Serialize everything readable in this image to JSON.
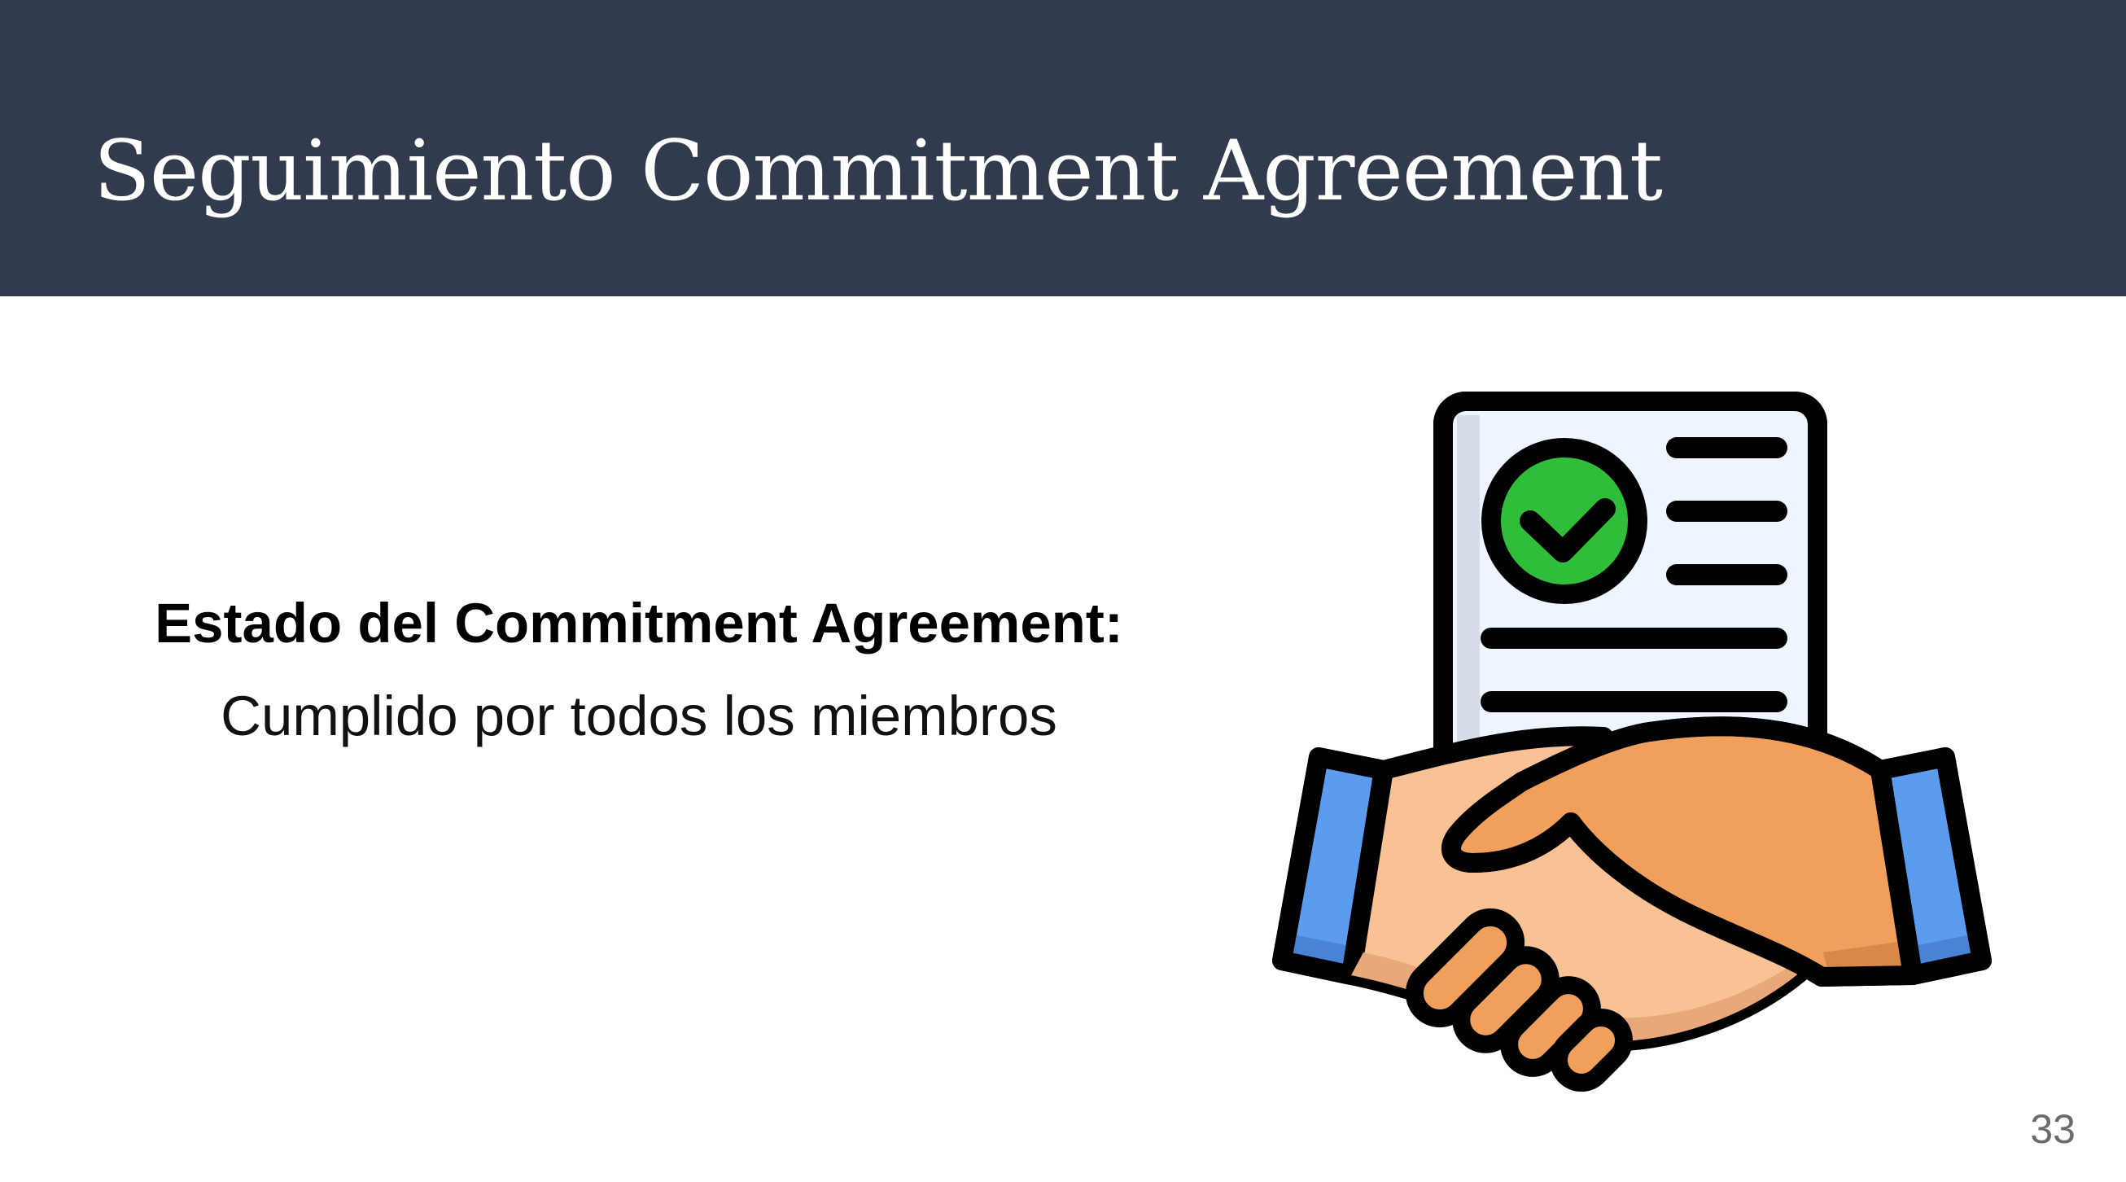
{
  "slide": {
    "title": "Seguimiento Commitment Agreement",
    "status_heading": "Estado del Commitment Agreement:",
    "status_value": "Cumplido por todos los miembros",
    "page_number": "33"
  },
  "illustration": {
    "icon": "handshake-contract-icon",
    "parts": [
      "document-icon",
      "checkmark-icon",
      "handshake-icon"
    ]
  },
  "colors": {
    "header_background": "#323a4d",
    "title_text": "#ffffff",
    "check_green": "#2fbd3a",
    "document_fill": "#eef5ff",
    "sleeve_blue": "#5b9cef",
    "hand_light": "#f8c295",
    "hand_dark": "#f0a05c",
    "outline": "#000000"
  }
}
